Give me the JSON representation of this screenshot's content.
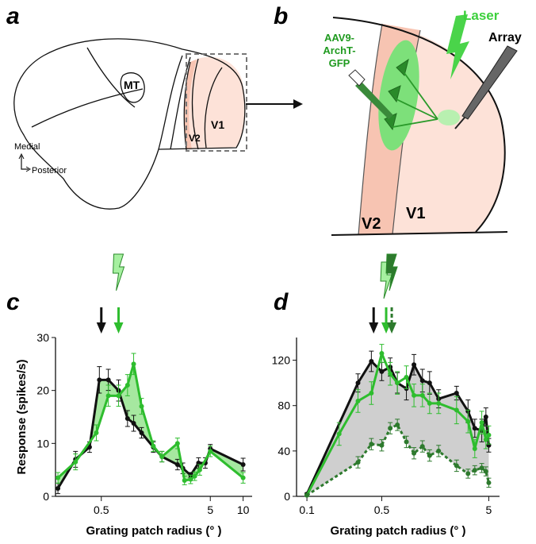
{
  "panels": {
    "a": {
      "label": "a",
      "mt": "MT",
      "v2": "V2",
      "v1": "V1",
      "medial": "Medial",
      "posterior": "Posterior"
    },
    "b": {
      "label": "b",
      "injection": [
        "AAV9-",
        "ArchT-",
        "GFP"
      ],
      "laser": "Laser",
      "array": "Array",
      "v2": "V2",
      "v1": "V1"
    }
  },
  "chart_data": [
    {
      "type": "line",
      "panel_label": "c",
      "xlabel": "Grating patch radius (° )",
      "ylabel": "Response (spikes/s)",
      "xscale": "log",
      "xlim": [
        0.19,
        12.1
      ],
      "xticks": [
        0.5,
        5,
        10
      ],
      "ylim": [
        0,
        30
      ],
      "yticks": [
        0,
        10,
        20,
        30
      ],
      "fill_between": [
        0,
        1
      ],
      "fill_color": "#a6e8a0",
      "series": [
        {
          "color": "#111111",
          "x": [
            0.2,
            0.29,
            0.39,
            0.48,
            0.58,
            0.72,
            0.87,
            0.99,
            1.17,
            1.5,
            1.8,
            2.5,
            2.8,
            3.3,
            3.9,
            4.5,
            5,
            10
          ],
          "values": [
            1.5,
            7,
            9.3,
            22,
            22,
            20,
            14.7,
            13.8,
            12,
            9.3,
            7.5,
            6,
            5.3,
            4,
            6.3,
            6.3,
            9,
            6
          ],
          "errors": [
            1,
            1.5,
            1,
            2.5,
            2,
            2,
            1.5,
            1.5,
            1,
            1,
            1,
            1,
            1,
            0.5,
            1,
            1,
            0.8,
            1.2
          ]
        },
        {
          "color": "#2ebd2e",
          "x": [
            0.2,
            0.29,
            0.45,
            0.58,
            0.72,
            0.87,
            0.99,
            1.17,
            1.5,
            1.8,
            2.5,
            2.9,
            3.3,
            3.6,
            4.0,
            5,
            10
          ],
          "values": [
            3.5,
            6.5,
            12,
            19,
            19,
            21,
            25,
            17,
            9.5,
            7.5,
            10,
            3,
            3.2,
            3.8,
            5,
            8.5,
            3.5
          ],
          "errors": [
            1,
            1.5,
            1.5,
            2,
            2,
            2,
            2,
            1.5,
            1,
            1,
            1,
            0.8,
            0.8,
            0.8,
            1,
            1,
            1
          ]
        }
      ],
      "markers": [
        {
          "x": 0.5,
          "color": "#111111"
        },
        {
          "x": 0.72,
          "color": "#2ebd2e",
          "bolt": "#a6f0a0"
        }
      ]
    },
    {
      "type": "line",
      "panel_label": "d",
      "xlabel": "Grating patch radius (° )",
      "xscale": "log",
      "xlim": [
        0.08,
        6.3
      ],
      "xticks": [
        0.1,
        0.5,
        5
      ],
      "ylim": [
        0,
        140
      ],
      "yticks": [
        0,
        40,
        80,
        120
      ],
      "fill_between": [
        0,
        2
      ],
      "fill_color": "#cfcfcf",
      "series": [
        {
          "color": "#111111",
          "x": [
            0.1,
            0.3,
            0.4,
            0.5,
            0.6,
            0.7,
            0.85,
            1.0,
            1.2,
            1.4,
            1.7,
            2.5,
            3.2,
            3.7,
            4.3,
            4.7,
            5
          ],
          "values": [
            2,
            100,
            119,
            110,
            114,
            100,
            95,
            116,
            102,
            100,
            86,
            91,
            75,
            60,
            58,
            70,
            45
          ],
          "errors": [
            1,
            8,
            9,
            8,
            8,
            9,
            10,
            9,
            10,
            10,
            8,
            6,
            10,
            8,
            10,
            8,
            6
          ]
        },
        {
          "color": "#2ebd2e",
          "x": [
            0.1,
            0.2,
            0.3,
            0.4,
            0.5,
            0.6,
            0.7,
            0.85,
            1.0,
            1.2,
            1.4,
            1.7,
            2.5,
            3.2,
            3.7,
            4.3,
            4.7,
            5
          ],
          "values": [
            1,
            55,
            84,
            91,
            126,
            108,
            100,
            105,
            89,
            89,
            82,
            82,
            76,
            66,
            42,
            65,
            50,
            54
          ],
          "errors": [
            1,
            10,
            10,
            10,
            8,
            10,
            10,
            10,
            10,
            10,
            9,
            9,
            12,
            10,
            8,
            10,
            8,
            8
          ]
        },
        {
          "color": "#2d7a2d",
          "dashed": true,
          "x": [
            0.1,
            0.3,
            0.4,
            0.5,
            0.6,
            0.7,
            0.85,
            1.0,
            1.2,
            1.4,
            1.7,
            2.5,
            3.2,
            3.7,
            4.3,
            4.7,
            5
          ],
          "values": [
            1,
            30,
            46,
            45,
            60,
            63,
            48,
            38,
            44,
            36,
            40,
            27,
            20,
            23,
            25,
            22,
            12
          ],
          "errors": [
            1,
            5,
            5,
            5,
            5,
            5,
            5,
            5,
            5,
            5,
            5,
            5,
            4,
            4,
            4,
            4,
            4
          ]
        }
      ],
      "markers": [
        {
          "x": 0.42,
          "color": "#111111"
        },
        {
          "x": 0.55,
          "color": "#2ebd2e",
          "bolt": "#a6f0a0"
        },
        {
          "x": 0.62,
          "color": "#2d7a2d",
          "bolt": "#2d7a2d",
          "dashed": true
        }
      ]
    }
  ]
}
